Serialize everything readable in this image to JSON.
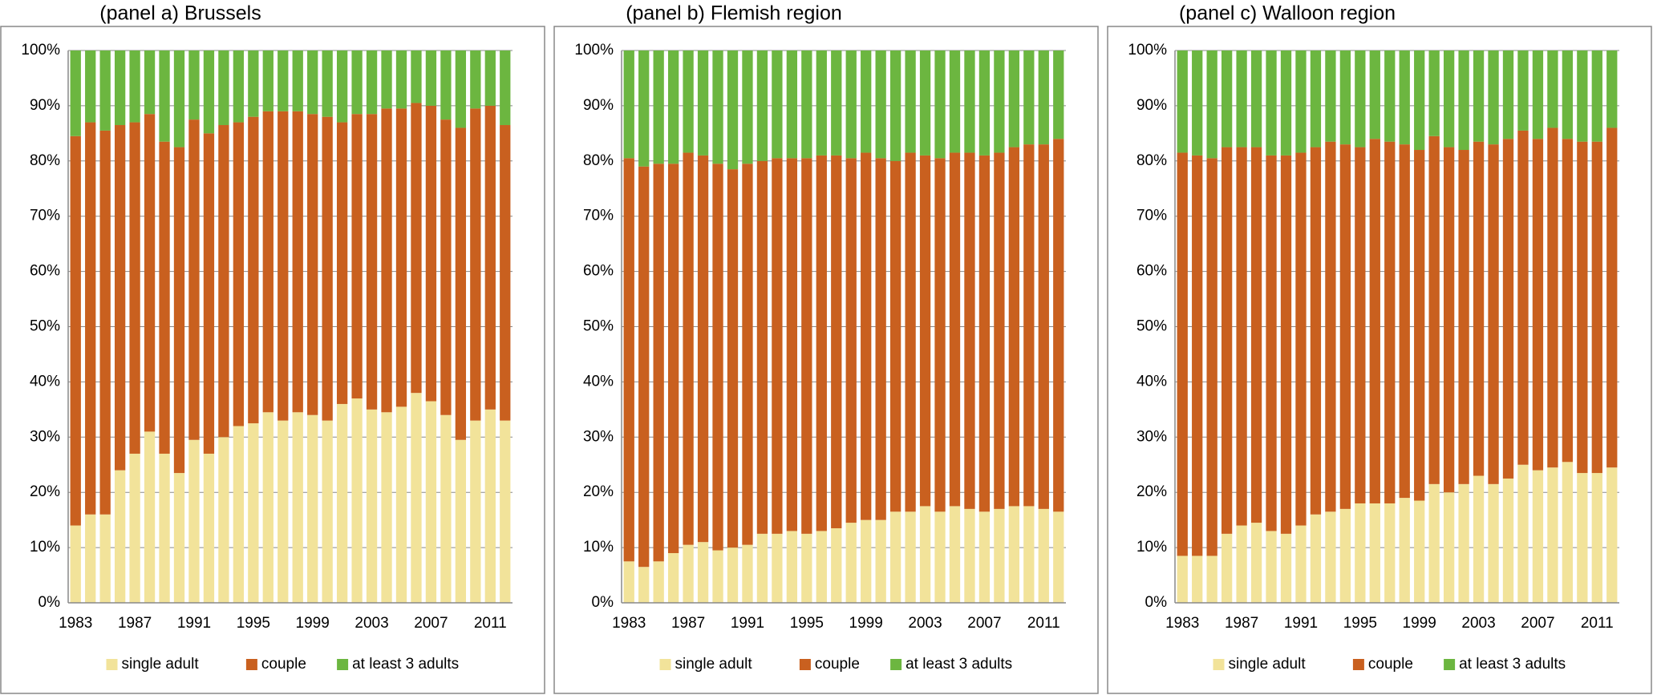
{
  "chart_data": [
    {
      "type": "bar",
      "stacked": true,
      "title": "(panel a) Brussels",
      "categories": [
        "1983",
        null,
        null,
        null,
        "1987",
        null,
        null,
        null,
        "1991",
        null,
        null,
        null,
        "1995",
        null,
        null,
        null,
        "1999",
        null,
        null,
        null,
        "2003",
        null,
        null,
        null,
        "2007",
        null,
        null,
        null,
        "2011",
        null
      ],
      "series": [
        {
          "name": "single adult",
          "color": "#f2e39a",
          "values": [
            14,
            16,
            16,
            24,
            27,
            31,
            27,
            23.5,
            29.5,
            27,
            30,
            32,
            32.5,
            34.5,
            33,
            34.5,
            34,
            33,
            36,
            37,
            35,
            34.5,
            35.5,
            38,
            36.5,
            34,
            29.5,
            33,
            35,
            33
          ]
        },
        {
          "name": "couple",
          "color": "#c9601f",
          "values": [
            70.5,
            71,
            69.5,
            62.5,
            60,
            57.5,
            56.5,
            59,
            58,
            58,
            56.5,
            55,
            55.5,
            54.5,
            56,
            54.5,
            54.5,
            55,
            51,
            51.5,
            53.5,
            55,
            54,
            52.5,
            53.5,
            53.5,
            56.5,
            56.5,
            55,
            53.5
          ]
        },
        {
          "name": "at least 3 adults",
          "color": "#6cb640",
          "values": [
            15.5,
            13,
            14.5,
            13.5,
            13,
            11.5,
            16.5,
            17.5,
            12.5,
            15,
            13.5,
            13,
            12,
            11,
            11,
            11,
            11.5,
            12,
            13,
            11.5,
            11.5,
            10.5,
            10.5,
            9.5,
            10,
            12.5,
            14,
            10.5,
            10,
            13.5
          ]
        }
      ],
      "ylim": [
        0,
        100
      ],
      "yticks": [
        {
          "value": 0,
          "label": "0%"
        },
        {
          "value": 10,
          "label": "10%"
        },
        {
          "value": 20,
          "label": "20%"
        },
        {
          "value": 30,
          "label": "30%"
        },
        {
          "value": 40,
          "label": "40%"
        },
        {
          "value": 50,
          "label": "50%"
        },
        {
          "value": 60,
          "label": "60%"
        },
        {
          "value": 70,
          "label": "70%"
        },
        {
          "value": 80,
          "label": "80%"
        },
        {
          "value": 90,
          "label": "90%"
        },
        {
          "value": 100,
          "label": "100%"
        }
      ],
      "grid": true,
      "legend": "bottom"
    },
    {
      "type": "bar",
      "stacked": true,
      "title": "(panel b) Flemish region",
      "categories": [
        "1983",
        null,
        null,
        null,
        "1987",
        null,
        null,
        null,
        "1991",
        null,
        null,
        null,
        "1995",
        null,
        null,
        null,
        "1999",
        null,
        null,
        null,
        "2003",
        null,
        null,
        null,
        "2007",
        null,
        null,
        null,
        "2011",
        null
      ],
      "series": [
        {
          "name": "single adult",
          "color": "#f2e39a",
          "values": [
            7.5,
            6.5,
            7.5,
            9,
            10.5,
            11,
            9.5,
            10,
            10.5,
            12.5,
            12.5,
            13,
            12.5,
            13,
            13.5,
            14.5,
            15,
            15,
            16.5,
            16.5,
            17.5,
            16.5,
            17.5,
            17,
            16.5,
            17,
            17.5,
            17.5,
            17,
            16.5
          ]
        },
        {
          "name": "couple",
          "color": "#c9601f",
          "values": [
            73,
            72.5,
            72,
            70.5,
            71,
            70,
            70,
            68.5,
            69,
            67.5,
            68,
            67.5,
            68,
            68,
            67.5,
            66,
            66.5,
            65.5,
            63.5,
            65,
            63.5,
            64,
            64,
            64.5,
            64.5,
            64.5,
            65,
            65.5,
            66,
            67.5
          ]
        },
        {
          "name": "at least 3 adults",
          "color": "#6cb640",
          "values": [
            19.5,
            21,
            20.5,
            20.5,
            18.5,
            19,
            20.5,
            21.5,
            20.5,
            20,
            19.5,
            19.5,
            19.5,
            19,
            19,
            19.5,
            18.5,
            19.5,
            20,
            18.5,
            19,
            19.5,
            18.5,
            18.5,
            19,
            18.5,
            17.5,
            17,
            17,
            16
          ]
        }
      ],
      "ylim": [
        0,
        100
      ],
      "yticks": [
        {
          "value": 0,
          "label": "0%"
        },
        {
          "value": 10,
          "label": "10%"
        },
        {
          "value": 20,
          "label": "20%"
        },
        {
          "value": 30,
          "label": "30%"
        },
        {
          "value": 40,
          "label": "40%"
        },
        {
          "value": 50,
          "label": "50%"
        },
        {
          "value": 60,
          "label": "60%"
        },
        {
          "value": 70,
          "label": "70%"
        },
        {
          "value": 80,
          "label": "80%"
        },
        {
          "value": 90,
          "label": "90%"
        },
        {
          "value": 100,
          "label": "100%"
        }
      ],
      "grid": true,
      "legend": "bottom"
    },
    {
      "type": "bar",
      "stacked": true,
      "title": "(panel c) Walloon region",
      "categories": [
        "1983",
        null,
        null,
        null,
        "1987",
        null,
        null,
        null,
        "1991",
        null,
        null,
        null,
        "1995",
        null,
        null,
        null,
        "1999",
        null,
        null,
        null,
        "2003",
        null,
        null,
        null,
        "2007",
        null,
        null,
        null,
        "2011",
        null
      ],
      "series": [
        {
          "name": "single adult",
          "color": "#f2e39a",
          "values": [
            8.5,
            8.5,
            8.5,
            12.5,
            14,
            14.5,
            13,
            12.5,
            14,
            16,
            16.5,
            17,
            18,
            18,
            18,
            19,
            18.5,
            21.5,
            20,
            21.5,
            23,
            21.5,
            22.5,
            25,
            24,
            24.5,
            25.5,
            23.5,
            23.5,
            24.5
          ]
        },
        {
          "name": "couple",
          "color": "#c9601f",
          "values": [
            73,
            72.5,
            72,
            70,
            68.5,
            68,
            68,
            68.5,
            67.5,
            66.5,
            67,
            66,
            64.5,
            66,
            65.5,
            64,
            63.5,
            63,
            62.5,
            60.5,
            60.5,
            61.5,
            61.5,
            60.5,
            60,
            61.5,
            58.5,
            60,
            60,
            61.5
          ]
        },
        {
          "name": "at least 3 adults",
          "color": "#6cb640",
          "values": [
            18.5,
            19,
            19.5,
            17.5,
            17.5,
            17.5,
            19,
            19,
            18.5,
            17.5,
            16.5,
            17,
            17.5,
            16,
            16.5,
            17,
            18,
            15.5,
            17.5,
            18,
            16.5,
            17,
            16,
            14.5,
            16,
            14,
            16,
            16.5,
            16.5,
            14
          ]
        }
      ],
      "ylim": [
        0,
        100
      ],
      "yticks": [
        {
          "value": 0,
          "label": "0%"
        },
        {
          "value": 10,
          "label": "10%"
        },
        {
          "value": 20,
          "label": "20%"
        },
        {
          "value": 30,
          "label": "30%"
        },
        {
          "value": 40,
          "label": "40%"
        },
        {
          "value": 50,
          "label": "50%"
        },
        {
          "value": 60,
          "label": "60%"
        },
        {
          "value": 70,
          "label": "70%"
        },
        {
          "value": 80,
          "label": "80%"
        },
        {
          "value": 90,
          "label": "90%"
        },
        {
          "value": 100,
          "label": "100%"
        }
      ],
      "grid": true,
      "legend": "bottom"
    }
  ]
}
